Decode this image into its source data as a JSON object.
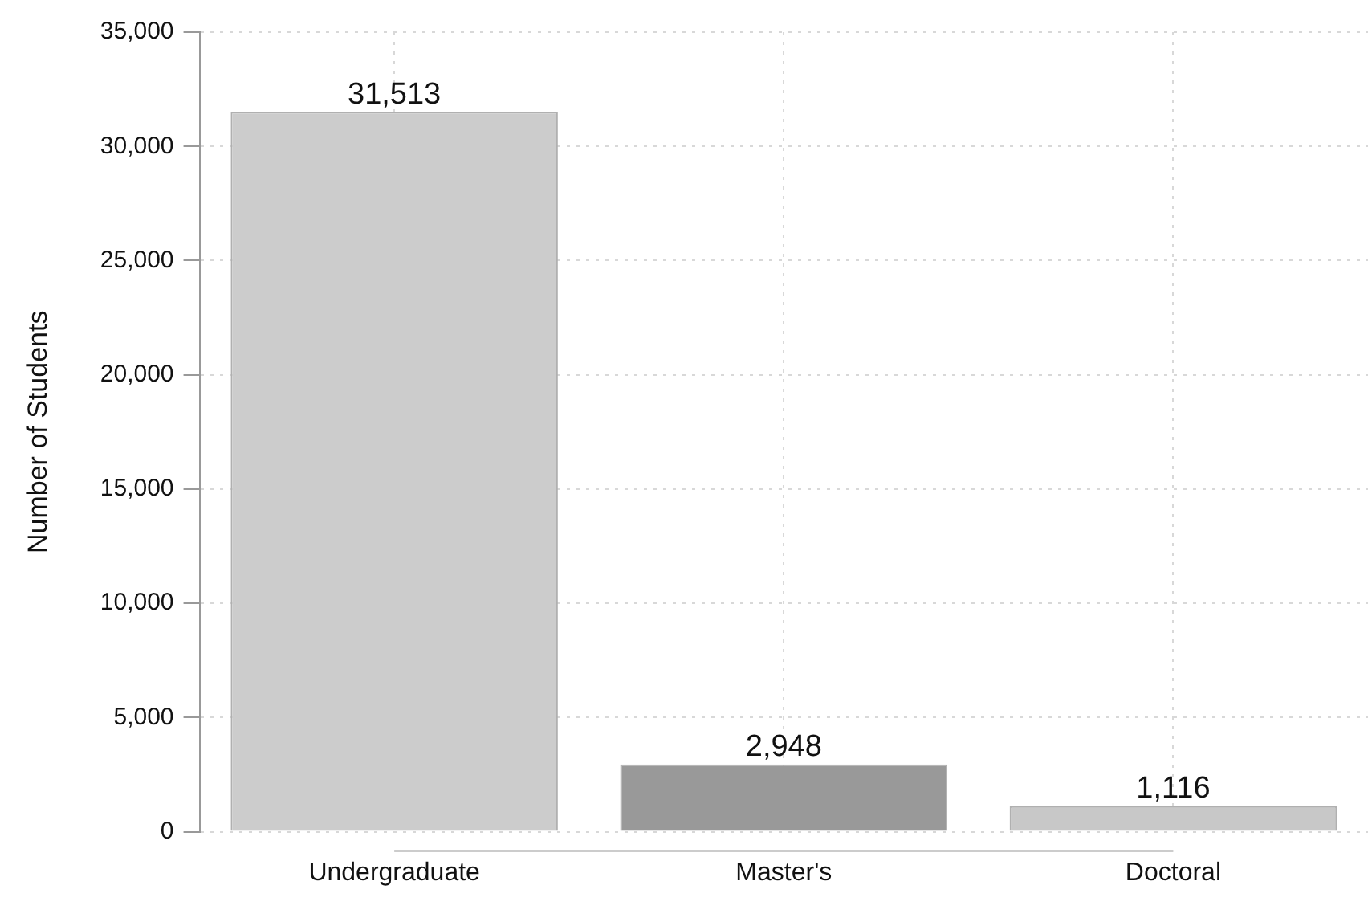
{
  "chart_data": {
    "type": "bar",
    "ylabel": "Number of Students",
    "categories": [
      "Undergraduate",
      "Master's",
      "Doctoral"
    ],
    "values": [
      31513,
      2948,
      1116
    ],
    "colors": [
      "#cccccc",
      "#999999",
      "#c8c8c8"
    ],
    "ylim": [
      0,
      35000
    ],
    "yticks": [
      {
        "value": 0,
        "label": "0"
      },
      {
        "value": 5000,
        "label": "5,000"
      },
      {
        "value": 10000,
        "label": "10,000"
      },
      {
        "value": 15000,
        "label": "15,000"
      },
      {
        "value": 20000,
        "label": "20,000"
      },
      {
        "value": 25000,
        "label": "25,000"
      },
      {
        "value": 30000,
        "label": "30,000"
      },
      {
        "value": 35000,
        "label": "35,000"
      }
    ],
    "value_labels": [
      "31,513",
      "2,948",
      "1,116"
    ],
    "grid": true
  }
}
